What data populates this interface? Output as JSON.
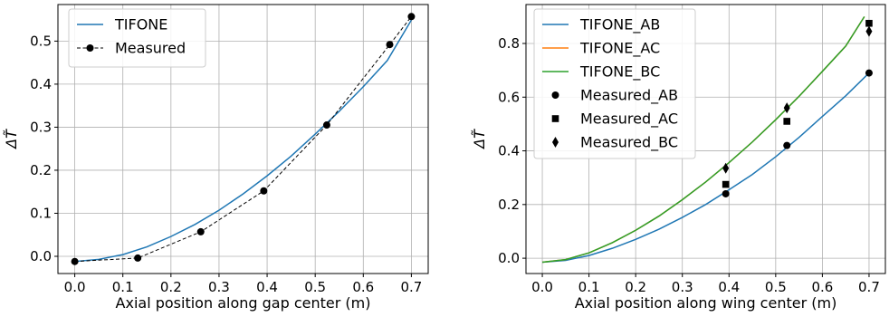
{
  "chart_data": [
    {
      "type": "line",
      "xlabel": "Axial position along gap center (m)",
      "ylabel": "ΔT̃",
      "xlim": [
        -0.035,
        0.735
      ],
      "ylim": [
        -0.04,
        0.585
      ],
      "xticks": [
        0.0,
        0.1,
        0.2,
        0.3,
        0.4,
        0.5,
        0.6,
        0.7
      ],
      "xtick_labels": [
        "0.0",
        "0.1",
        "0.2",
        "0.3",
        "0.4",
        "0.5",
        "0.6",
        "0.7"
      ],
      "yticks": [
        0.0,
        0.1,
        0.2,
        0.3,
        0.4,
        0.5
      ],
      "ytick_labels": [
        "0.0",
        "0.1",
        "0.2",
        "0.3",
        "0.4",
        "0.5"
      ],
      "grid": true,
      "legend_position": "top-left",
      "series": [
        {
          "name": "TIFONE",
          "style": "solid-line",
          "color": "#1f77b4",
          "x": [
            0.0,
            0.05,
            0.1,
            0.15,
            0.2,
            0.25,
            0.3,
            0.35,
            0.4,
            0.45,
            0.5,
            0.55,
            0.6,
            0.65,
            0.7
          ],
          "y": [
            -0.012,
            -0.007,
            0.004,
            0.022,
            0.046,
            0.074,
            0.107,
            0.145,
            0.187,
            0.233,
            0.284,
            0.337,
            0.394,
            0.455,
            0.549
          ]
        },
        {
          "name": "Measured",
          "style": "dashed-line-circle-markers",
          "color": "#000000",
          "x": [
            0.0,
            0.131,
            0.262,
            0.393,
            0.524,
            0.655,
            0.7
          ],
          "y": [
            -0.012,
            -0.004,
            0.057,
            0.152,
            0.305,
            0.492,
            0.557
          ]
        }
      ]
    },
    {
      "type": "line",
      "xlabel": "Axial position along wing center (m)",
      "ylabel": "ΔT̃",
      "xlim": [
        -0.035,
        0.735
      ],
      "ylim": [
        -0.057,
        0.945
      ],
      "xticks": [
        0.0,
        0.1,
        0.2,
        0.3,
        0.4,
        0.5,
        0.6,
        0.7
      ],
      "xtick_labels": [
        "0.0",
        "0.1",
        "0.2",
        "0.3",
        "0.4",
        "0.5",
        "0.6",
        "0.7"
      ],
      "yticks": [
        0.0,
        0.2,
        0.4,
        0.6,
        0.8
      ],
      "ytick_labels": [
        "0.0",
        "0.2",
        "0.4",
        "0.6",
        "0.8"
      ],
      "grid": true,
      "legend_position": "top-left",
      "series": [
        {
          "name": "TIFONE_AB",
          "style": "solid-line",
          "color": "#1f77b4",
          "x": [
            0.0,
            0.05,
            0.1,
            0.15,
            0.2,
            0.25,
            0.3,
            0.35,
            0.4,
            0.45,
            0.5,
            0.55,
            0.6,
            0.65,
            0.7
          ],
          "y": [
            -0.015,
            -0.008,
            0.01,
            0.037,
            0.07,
            0.108,
            0.152,
            0.2,
            0.255,
            0.312,
            0.378,
            0.45,
            0.528,
            0.605,
            0.69
          ]
        },
        {
          "name": "TIFONE_AC",
          "style": "solid-line",
          "color": "#ff7f0e",
          "x": [
            0.0,
            0.05,
            0.1,
            0.15,
            0.2,
            0.25,
            0.3,
            0.35,
            0.4,
            0.45,
            0.5,
            0.55,
            0.6,
            0.65,
            0.69
          ],
          "y": [
            -0.015,
            -0.005,
            0.02,
            0.058,
            0.104,
            0.157,
            0.218,
            0.284,
            0.356,
            0.433,
            0.516,
            0.603,
            0.696,
            0.79,
            0.9
          ]
        },
        {
          "name": "TIFONE_BC",
          "style": "solid-line",
          "color": "#2ca02c",
          "x": [
            0.0,
            0.05,
            0.1,
            0.15,
            0.2,
            0.25,
            0.3,
            0.35,
            0.4,
            0.45,
            0.5,
            0.55,
            0.6,
            0.65,
            0.69
          ],
          "y": [
            -0.015,
            -0.005,
            0.02,
            0.058,
            0.104,
            0.157,
            0.218,
            0.284,
            0.356,
            0.433,
            0.516,
            0.603,
            0.696,
            0.79,
            0.9
          ]
        },
        {
          "name": "Measured_AB",
          "style": "circle-markers",
          "color": "#000000",
          "x": [
            0.393,
            0.524,
            0.7
          ],
          "y": [
            0.24,
            0.42,
            0.69
          ]
        },
        {
          "name": "Measured_AC",
          "style": "square-markers",
          "color": "#000000",
          "x": [
            0.393,
            0.524,
            0.7
          ],
          "y": [
            0.275,
            0.51,
            0.875
          ]
        },
        {
          "name": "Measured_BC",
          "style": "diamond-markers",
          "color": "#000000",
          "x": [
            0.393,
            0.524,
            0.7
          ],
          "y": [
            0.335,
            0.56,
            0.845
          ]
        }
      ]
    }
  ]
}
